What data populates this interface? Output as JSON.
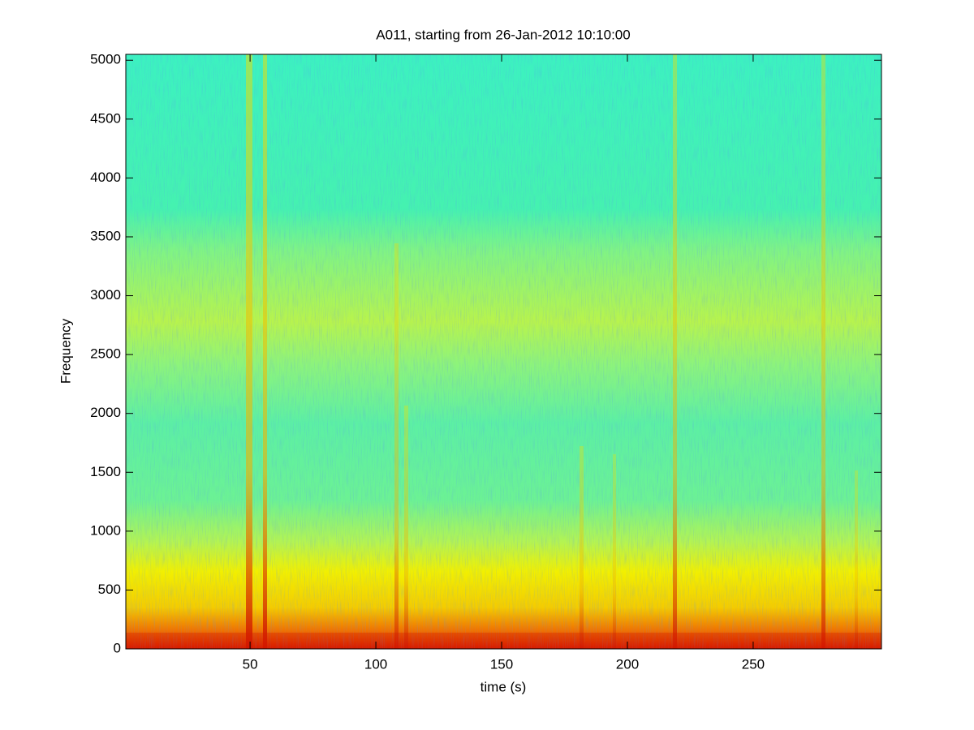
{
  "chart_data": {
    "type": "spectrogram",
    "title": "A011, starting from 26-Jan-2012 10:10:00",
    "xlabel": "time (s)",
    "ylabel": "Frequency",
    "xlim": [
      0.6,
      301
    ],
    "ylim": [
      0,
      5050
    ],
    "xticks": [
      50,
      100,
      150,
      200,
      250
    ],
    "yticks": [
      0,
      500,
      1000,
      1500,
      2000,
      2500,
      3000,
      3500,
      4000,
      4500,
      5000
    ]
  }
}
